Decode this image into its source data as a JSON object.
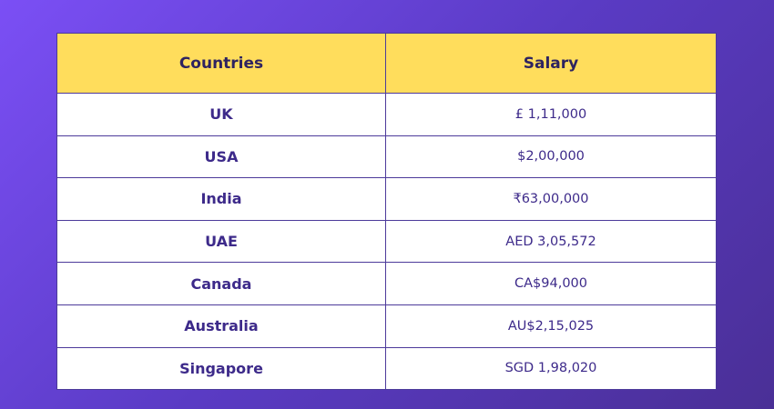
{
  "table": {
    "header": [
      "Countries",
      "Salary"
    ],
    "rows": [
      [
        "UK",
        "£ 1,11,000"
      ],
      [
        "USA",
        "$2,00,000"
      ],
      [
        "India",
        "₹63,00,000"
      ],
      [
        "UAE",
        "AED 3,05,572"
      ],
      [
        "Canada",
        "CA$94,000"
      ],
      [
        "Australia",
        "AU$2,15,025"
      ],
      [
        "Singapore",
        "SGD 1,98,020"
      ]
    ]
  }
}
